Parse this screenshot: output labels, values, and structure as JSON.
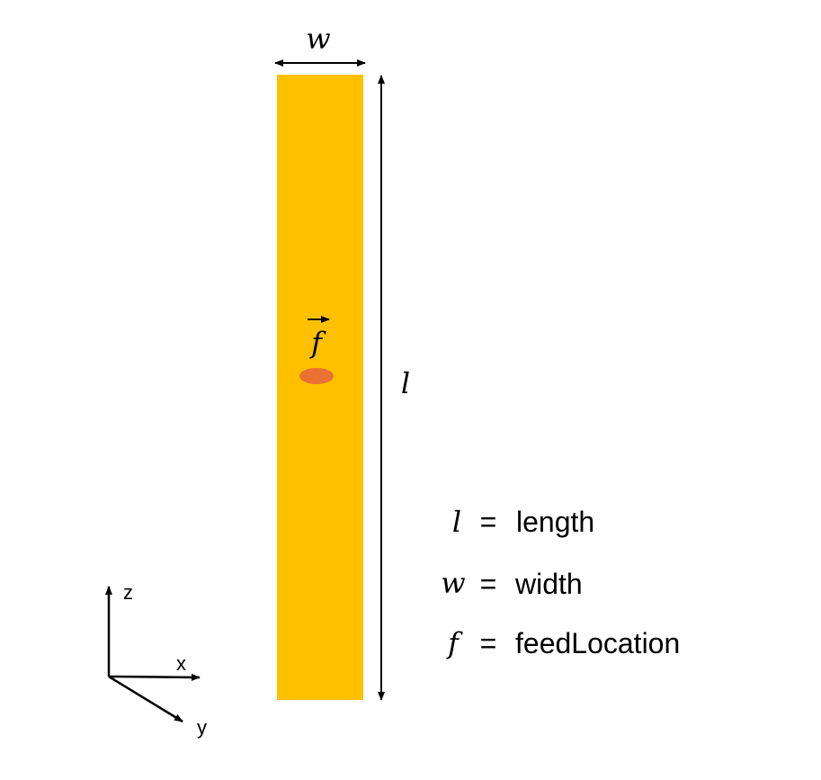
{
  "diagram": {
    "dimensions": {
      "width_symbol": "w",
      "length_symbol": "l",
      "feed_symbol": "f"
    },
    "legend": [
      {
        "symbol": "l",
        "equals": "=",
        "description": "length"
      },
      {
        "symbol": "w",
        "equals": "=",
        "description": "width"
      },
      {
        "symbol": "f",
        "equals": "=",
        "description": "feedLocation"
      }
    ],
    "axes": {
      "z": "z",
      "x": "x",
      "y": "y"
    },
    "colors": {
      "strip": "#FFC000",
      "feed": "#E97132",
      "lines": "#000000"
    }
  }
}
